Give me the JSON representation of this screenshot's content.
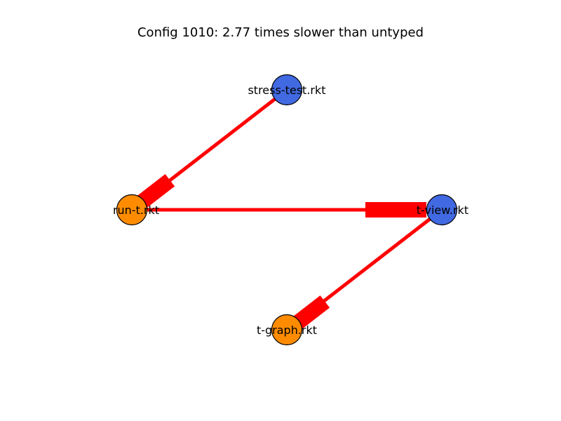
{
  "title": "Config 1010: 2.77 times slower than untyped",
  "colors": {
    "edge": "#ff0000",
    "typed_node": "#4169e1",
    "untyped_node": "#ff8c00",
    "node_stroke": "#000000"
  },
  "nodes": [
    {
      "id": "stress-test",
      "label": "stress-test.rkt",
      "color": "#4169e1"
    },
    {
      "id": "run-t",
      "label": "run-t.rkt",
      "color": "#ff8c00"
    },
    {
      "id": "t-view",
      "label": "t-view.rkt",
      "color": "#4169e1"
    },
    {
      "id": "t-graph",
      "label": "t-graph.rkt",
      "color": "#ff8c00"
    }
  ],
  "edges": [
    {
      "from": "stress-test",
      "to": "run-t"
    },
    {
      "from": "run-t",
      "to": "t-view"
    },
    {
      "from": "t-view",
      "to": "t-graph"
    }
  ]
}
